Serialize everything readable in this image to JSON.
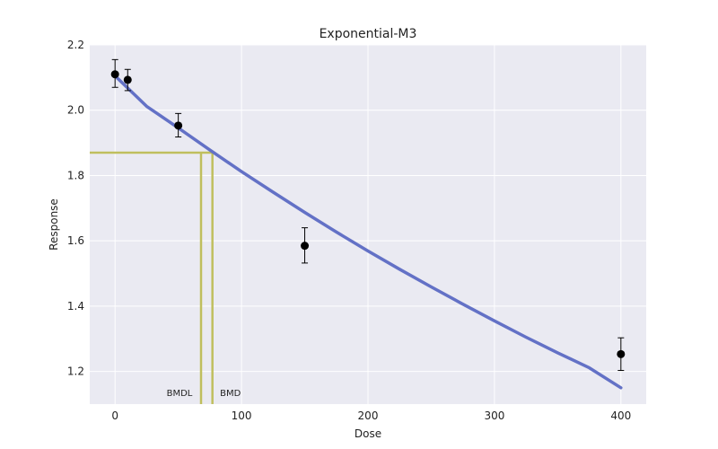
{
  "chart_data": {
    "type": "scatter",
    "title": "Exponential-M3",
    "xlabel": "Dose",
    "ylabel": "Response",
    "xlim": [
      -20,
      420
    ],
    "ylim": [
      1.1,
      2.2
    ],
    "xticks": [
      0,
      100,
      200,
      300,
      400
    ],
    "xtick_labels": [
      "0",
      "100",
      "200",
      "300",
      "400"
    ],
    "yticks": [
      1.2,
      1.4,
      1.6,
      1.8,
      2.0,
      2.2
    ],
    "ytick_labels": [
      "1.2",
      "1.4",
      "1.6",
      "1.8",
      "2.0",
      "2.2"
    ],
    "grid": true,
    "observations": [
      {
        "x": 0,
        "y": 2.11,
        "err_low": 2.07,
        "err_high": 2.155
      },
      {
        "x": 10,
        "y": 2.093,
        "err_low": 2.06,
        "err_high": 2.125
      },
      {
        "x": 50,
        "y": 1.953,
        "err_low": 1.918,
        "err_high": 1.99
      },
      {
        "x": 150,
        "y": 1.585,
        "err_low": 1.532,
        "err_high": 1.64
      },
      {
        "x": 400,
        "y": 1.253,
        "err_low": 1.203,
        "err_high": 1.303
      }
    ],
    "model_curve": {
      "x": [
        0,
        25,
        50,
        75,
        100,
        125,
        150,
        175,
        200,
        225,
        250,
        275,
        300,
        325,
        350,
        375,
        400
      ],
      "y": [
        2.105,
        2.012,
        1.946,
        1.878,
        1.812,
        1.749,
        1.687,
        1.627,
        1.569,
        1.513,
        1.459,
        1.406,
        1.355,
        1.305,
        1.257,
        1.211,
        1.15
      ]
    },
    "bmr_response": 1.87,
    "bmd": 77,
    "bmdl": 68,
    "bmd_label": "BMD",
    "bmdl_label": "BMDL",
    "colors": {
      "background": "#eaeaf2",
      "grid": "#ffffff",
      "curve": "#6371c6",
      "bmd_lines": "#c0bf5e",
      "points": "#000000"
    }
  }
}
